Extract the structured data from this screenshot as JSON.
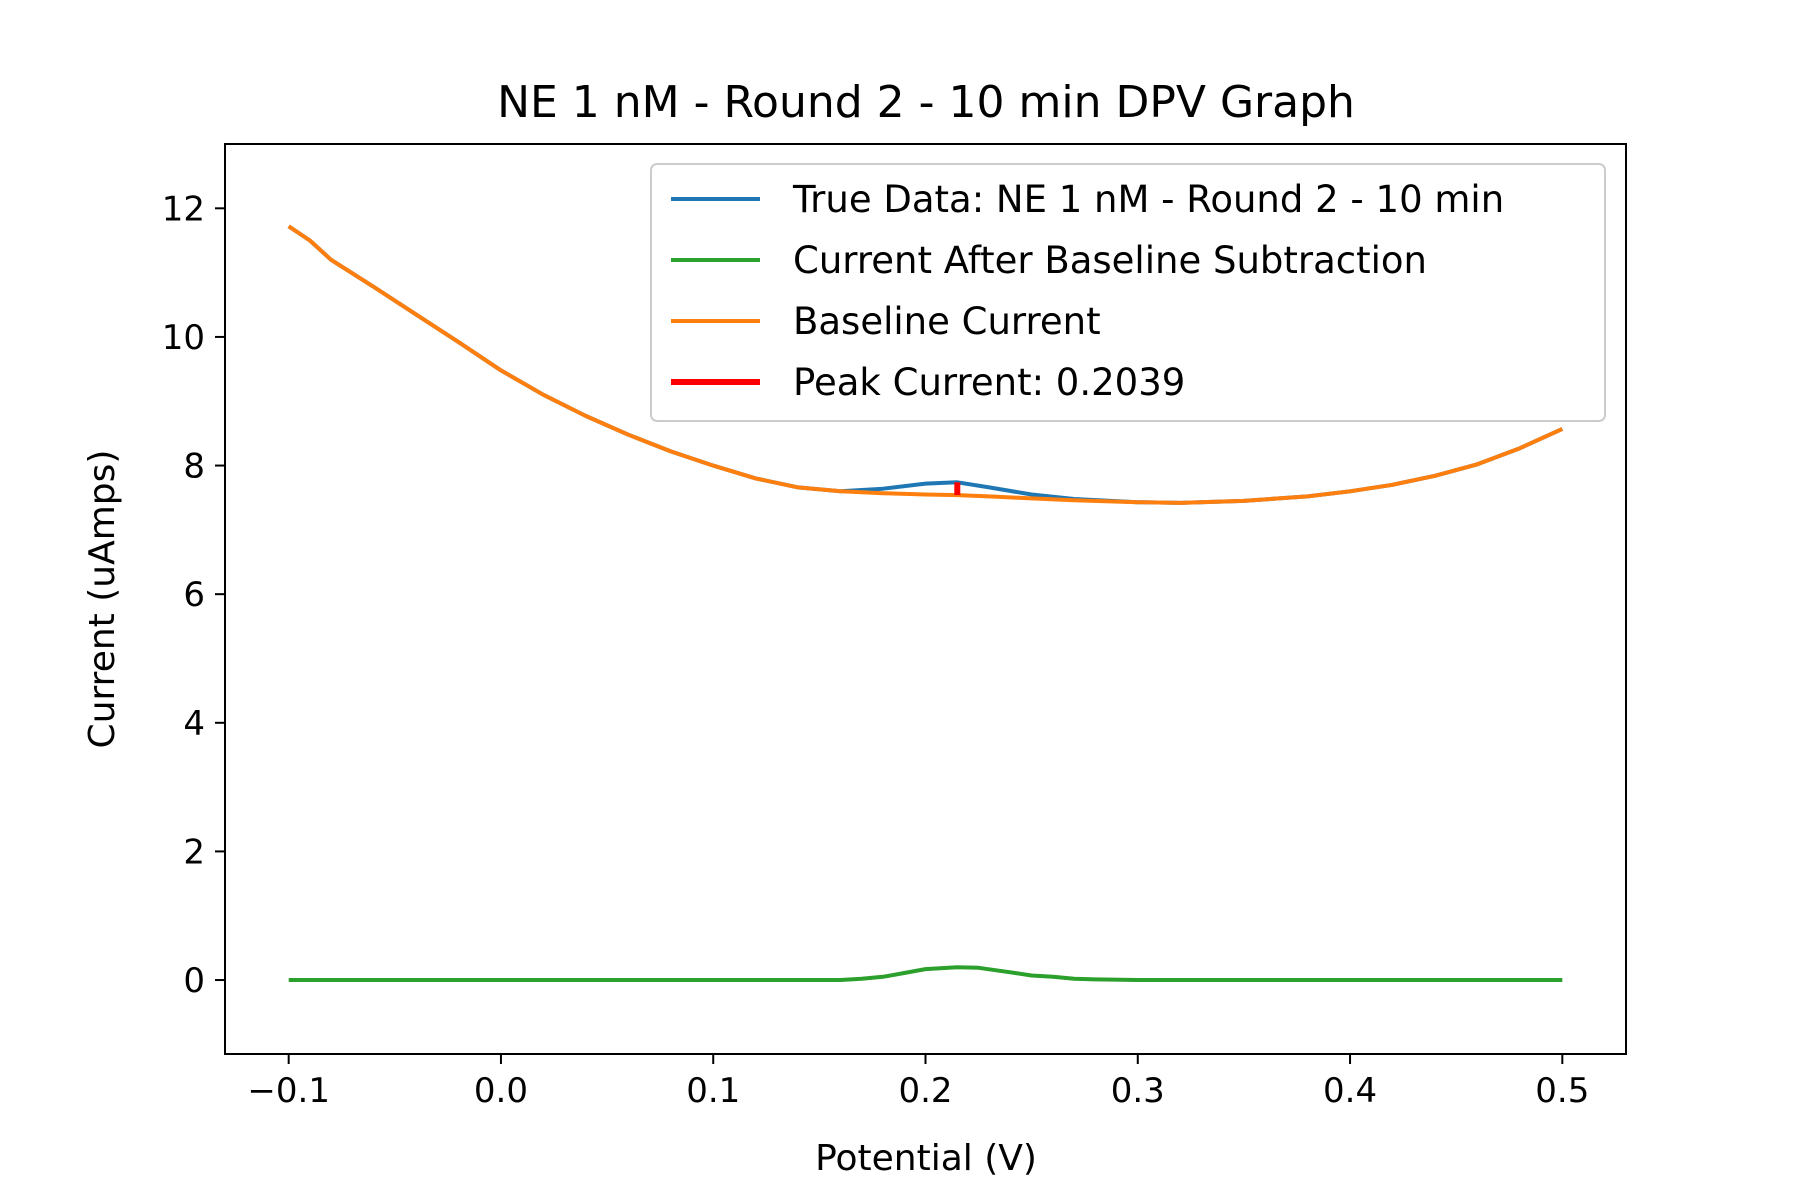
{
  "chart_data": {
    "type": "line",
    "title": "NE 1 nM - Round 2 - 10 min DPV Graph",
    "xlabel": "Potential (V)",
    "ylabel": "Current (uAmps)",
    "xlim": [
      -0.13,
      0.53
    ],
    "ylim": [
      -1.15,
      13.0
    ],
    "xticks": [
      -0.1,
      0.0,
      0.1,
      0.2,
      0.3,
      0.4,
      0.5
    ],
    "xtick_labels": [
      "−0.1",
      "0.0",
      "0.1",
      "0.2",
      "0.3",
      "0.4",
      "0.5"
    ],
    "yticks": [
      0,
      2,
      4,
      6,
      8,
      10,
      12
    ],
    "ytick_labels": [
      "0",
      "2",
      "4",
      "6",
      "8",
      "10",
      "12"
    ],
    "grid": false,
    "legend_position": "top-right",
    "series": [
      {
        "name": "True Data: NE 1 nM - Round 2 - 10 min",
        "color": "#1f77b4",
        "points": [
          [
            -0.1,
            11.72
          ],
          [
            -0.09,
            11.5
          ],
          [
            -0.08,
            11.2
          ],
          [
            -0.06,
            10.78
          ],
          [
            -0.04,
            10.35
          ],
          [
            -0.02,
            9.92
          ],
          [
            0.0,
            9.48
          ],
          [
            0.02,
            9.1
          ],
          [
            0.04,
            8.77
          ],
          [
            0.06,
            8.48
          ],
          [
            0.08,
            8.22
          ],
          [
            0.1,
            8.0
          ],
          [
            0.12,
            7.8
          ],
          [
            0.14,
            7.66
          ],
          [
            0.16,
            7.6
          ],
          [
            0.18,
            7.64
          ],
          [
            0.2,
            7.72
          ],
          [
            0.215,
            7.74
          ],
          [
            0.23,
            7.66
          ],
          [
            0.25,
            7.55
          ],
          [
            0.27,
            7.48
          ],
          [
            0.3,
            7.43
          ],
          [
            0.32,
            7.42
          ],
          [
            0.35,
            7.45
          ],
          [
            0.38,
            7.52
          ],
          [
            0.4,
            7.6
          ],
          [
            0.42,
            7.7
          ],
          [
            0.44,
            7.84
          ],
          [
            0.46,
            8.02
          ],
          [
            0.48,
            8.27
          ],
          [
            0.5,
            8.57
          ]
        ]
      },
      {
        "name": "Current After Baseline Subtraction",
        "color": "#2ca02c",
        "points": [
          [
            -0.1,
            0.0
          ],
          [
            0.16,
            0.0
          ],
          [
            0.17,
            0.02
          ],
          [
            0.18,
            0.05
          ],
          [
            0.19,
            0.11
          ],
          [
            0.2,
            0.17
          ],
          [
            0.215,
            0.2
          ],
          [
            0.225,
            0.19
          ],
          [
            0.24,
            0.12
          ],
          [
            0.25,
            0.07
          ],
          [
            0.26,
            0.05
          ],
          [
            0.27,
            0.02
          ],
          [
            0.28,
            0.01
          ],
          [
            0.3,
            0.0
          ],
          [
            0.5,
            0.0
          ]
        ]
      },
      {
        "name": "Baseline Current",
        "color": "#ff7f0e",
        "points": [
          [
            -0.1,
            11.72
          ],
          [
            -0.09,
            11.5
          ],
          [
            -0.08,
            11.2
          ],
          [
            -0.06,
            10.78
          ],
          [
            -0.04,
            10.35
          ],
          [
            -0.02,
            9.92
          ],
          [
            0.0,
            9.48
          ],
          [
            0.02,
            9.1
          ],
          [
            0.04,
            8.77
          ],
          [
            0.06,
            8.48
          ],
          [
            0.08,
            8.22
          ],
          [
            0.1,
            8.0
          ],
          [
            0.12,
            7.8
          ],
          [
            0.14,
            7.66
          ],
          [
            0.16,
            7.6
          ],
          [
            0.18,
            7.57
          ],
          [
            0.2,
            7.55
          ],
          [
            0.215,
            7.54
          ],
          [
            0.23,
            7.52
          ],
          [
            0.25,
            7.49
          ],
          [
            0.27,
            7.46
          ],
          [
            0.3,
            7.43
          ],
          [
            0.32,
            7.42
          ],
          [
            0.35,
            7.45
          ],
          [
            0.38,
            7.52
          ],
          [
            0.4,
            7.6
          ],
          [
            0.42,
            7.7
          ],
          [
            0.44,
            7.84
          ],
          [
            0.46,
            8.02
          ],
          [
            0.48,
            8.27
          ],
          [
            0.5,
            8.57
          ]
        ]
      },
      {
        "name": "Peak Current: 0.2039",
        "color": "#ff0000",
        "points": [
          [
            0.215,
            7.54
          ],
          [
            0.215,
            7.74
          ]
        ]
      }
    ]
  }
}
